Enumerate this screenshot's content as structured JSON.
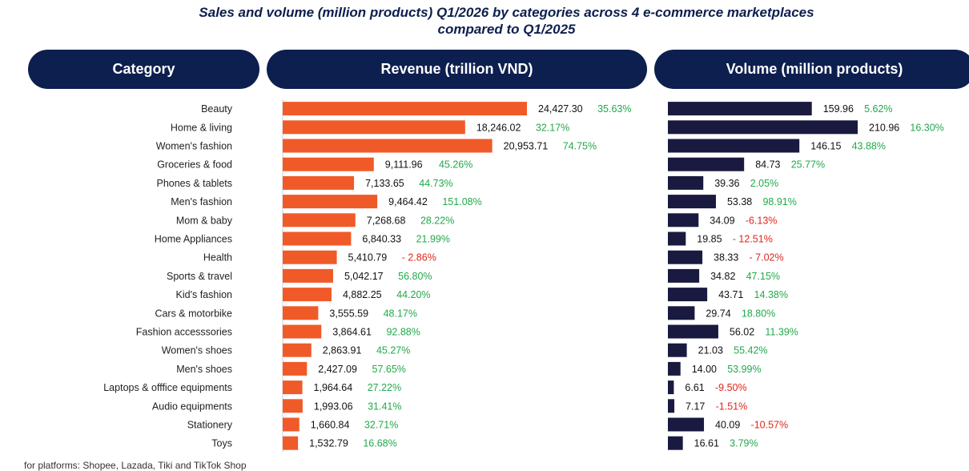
{
  "title": {
    "line1": "Sales and volume (million products) Q1/2026 by categories across 4 e-commerce marketplaces",
    "line2": "compared to Q1/2025"
  },
  "headers": {
    "category": "Category",
    "revenue": "Revenue (trillion VND)",
    "volume": "Volume (million products)"
  },
  "colors": {
    "header_bg": "#0d1f4f",
    "revenue_bar": "#f05a28",
    "volume_bar": "#1a1a40",
    "positive": "#22a94a",
    "negative": "#e0261b"
  },
  "chart_data": [
    {
      "type": "bar",
      "orientation": "horizontal",
      "title": "Revenue (trillion VND)",
      "categories": [
        "Beauty",
        "Home & living",
        "Women's fashion",
        "Groceries & food",
        "Phones & tablets",
        "Men's fashion",
        "Mom & baby",
        "Home Appliances",
        "Health",
        "Sports & travel",
        "Kid's fashion",
        "Cars & motorbike",
        "Fashion accesssories",
        "Women's shoes",
        "Men's shoes",
        "Laptops & offfice equipments",
        "Audio equipments",
        "Stationery",
        "Toys"
      ],
      "values": [
        24427.3,
        18246.02,
        20953.71,
        9111.96,
        7133.65,
        9464.42,
        7268.68,
        6840.33,
        5410.79,
        5042.17,
        4882.25,
        3555.59,
        3864.61,
        2863.91,
        2427.09,
        1964.64,
        1993.06,
        1660.84,
        1532.79
      ],
      "value_labels": [
        "24,427.30",
        "18,246.02",
        "20,953.71",
        "9,111.96",
        "7,133.65",
        "9,464.42",
        "7,268.68",
        "6,840.33",
        "5,410.79",
        "5,042.17",
        "4,882.25",
        "3,555.59",
        "3,864.61",
        "2,863.91",
        "2,427.09",
        "1,964.64",
        "1,993.06",
        "1,660.84",
        "1,532.79"
      ],
      "growth_labels": [
        "35.63%",
        "32.17%",
        "74.75%",
        "45.26%",
        "44.73%",
        "151.08%",
        "28.22%",
        "21.99%",
        "- 2.86%",
        "56.80%",
        "44.20%",
        "48.17%",
        "92.88%",
        "45.27%",
        "57.65%",
        "27.22%",
        "31.41%",
        "32.71%",
        "16.68%"
      ],
      "growth": [
        35.63,
        32.17,
        74.75,
        45.26,
        44.73,
        151.08,
        28.22,
        21.99,
        -2.86,
        56.8,
        44.2,
        48.17,
        92.88,
        45.27,
        57.65,
        27.22,
        31.41,
        32.71,
        16.68
      ]
    },
    {
      "type": "bar",
      "orientation": "horizontal",
      "title": "Volume (million products)",
      "categories": [
        "Beauty",
        "Home & living",
        "Women's fashion",
        "Groceries & food",
        "Phones & tablets",
        "Men's fashion",
        "Mom & baby",
        "Home Appliances",
        "Health",
        "Sports & travel",
        "Kid's fashion",
        "Cars & motorbike",
        "Fashion accesssories",
        "Women's shoes",
        "Men's shoes",
        "Laptops & offfice equipments",
        "Audio equipments",
        "Stationery",
        "Toys"
      ],
      "values": [
        159.96,
        210.96,
        146.15,
        84.73,
        39.36,
        53.38,
        34.09,
        19.85,
        38.33,
        34.82,
        43.71,
        29.74,
        56.02,
        21.03,
        14.0,
        6.61,
        7.17,
        40.09,
        16.61
      ],
      "value_labels": [
        "159.96",
        "210.96",
        "146.15",
        "84.73",
        "39.36",
        "53.38",
        "34.09",
        "19.85",
        "38.33",
        "34.82",
        "43.71",
        "29.74",
        "56.02",
        "21.03",
        "14.00",
        "6.61",
        "7.17",
        "40.09",
        "16.61"
      ],
      "growth_labels": [
        "5.62%",
        "16.30%",
        "43.88%",
        "25.77%",
        "2.05%",
        "98.91%",
        "-6.13%",
        "- 12.51%",
        "- 7.02%",
        "47.15%",
        "14.38%",
        "18.80%",
        "11.39%",
        "55.42%",
        "53.99%",
        "-9.50%",
        "-1.51%",
        "-10.57%",
        "3.79%"
      ],
      "growth": [
        5.62,
        16.3,
        43.88,
        25.77,
        2.05,
        98.91,
        -6.13,
        -12.51,
        -7.02,
        47.15,
        14.38,
        18.8,
        11.39,
        55.42,
        53.99,
        -9.5,
        -1.51,
        -10.57,
        3.79
      ]
    }
  ],
  "footnote": "for platforms: Shopee, Lazada, Tiki and TikTok Shop"
}
